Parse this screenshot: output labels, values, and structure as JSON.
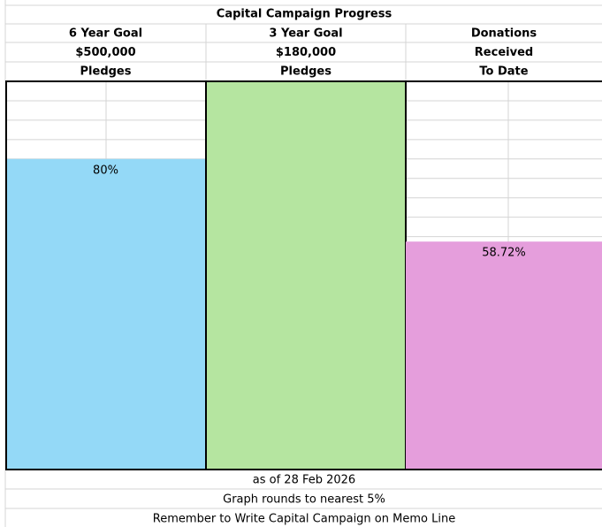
{
  "chart_data": {
    "type": "bar",
    "title": "Capital Campaign Progress",
    "categories": [
      [
        "6 Year Goal",
        "$500,000",
        "Pledges"
      ],
      [
        "3 Year Goal",
        "$180,000",
        "Pledges"
      ],
      [
        "Donations",
        "Received",
        "To Date"
      ]
    ],
    "values": [
      80,
      100,
      58.72
    ],
    "value_labels": [
      "80%",
      null,
      "58.72%"
    ],
    "colors": [
      "#94d9f7",
      "#b5e5a0",
      "#e59edc"
    ],
    "ylim": [
      0,
      100
    ],
    "notes": [
      "as of 28 Feb 2026",
      "Graph rounds to nearest 5%",
      "Remember to Write Capital Campaign on Memo Line"
    ]
  }
}
